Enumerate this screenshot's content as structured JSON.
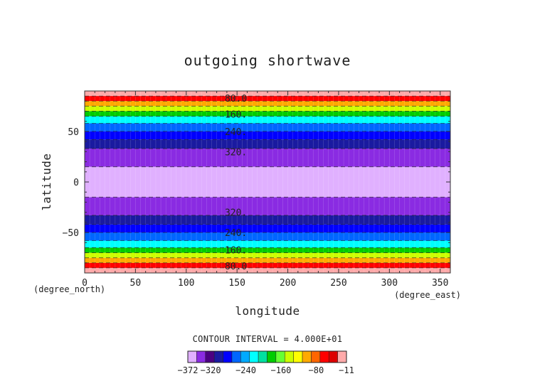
{
  "chart_data": {
    "type": "heatmap",
    "title": "outgoing shortwave",
    "xlabel": "longitude",
    "ylabel": "latitude",
    "x_unit": "(degree_east)",
    "y_unit": "(degree_north)",
    "xlim": [
      0,
      360
    ],
    "ylim": [
      -90,
      90
    ],
    "x_ticks": [
      0,
      50,
      100,
      150,
      200,
      250,
      300,
      350
    ],
    "y_ticks": [
      -50,
      0,
      50
    ],
    "y_tick_labels": [
      "−50",
      "0",
      "50"
    ],
    "field_description": "zonally uniform, symmetric about equator",
    "bands_north": [
      {
        "lat_min": 85,
        "lat_max": 90,
        "value": -11
      },
      {
        "lat_min": 80,
        "lat_max": 85,
        "value": -60
      },
      {
        "lat_min": 75,
        "lat_max": 80,
        "value": -100
      },
      {
        "lat_min": 70,
        "lat_max": 75,
        "value": -140
      },
      {
        "lat_min": 65,
        "lat_max": 70,
        "value": -180
      },
      {
        "lat_min": 58,
        "lat_max": 65,
        "value": -220
      },
      {
        "lat_min": 50,
        "lat_max": 58,
        "value": -260
      },
      {
        "lat_min": 42,
        "lat_max": 50,
        "value": -290
      },
      {
        "lat_min": 33,
        "lat_max": 42,
        "value": -310
      },
      {
        "lat_min": 15,
        "lat_max": 33,
        "value": -340
      },
      {
        "lat_min": 0,
        "lat_max": 15,
        "value": -372
      }
    ],
    "contour_labels": [
      {
        "text": "80.0",
        "lat": 83,
        "lon": 137
      },
      {
        "text": "160.",
        "lat": 67,
        "lon": 137
      },
      {
        "text": "240.",
        "lat": 50,
        "lon": 137
      },
      {
        "text": "320.",
        "lat": 30,
        "lon": 137
      },
      {
        "text": "320.",
        "lat": -30,
        "lon": 137
      },
      {
        "text": "240.",
        "lat": -50,
        "lon": 137
      },
      {
        "text": "160.",
        "lat": -67,
        "lon": 137
      },
      {
        "text": "80.0",
        "lat": -83,
        "lon": 137
      }
    ],
    "contour_interval_text": "CONTOUR INTERVAL = 4.000E+01",
    "colorbar": {
      "range": [
        -372,
        -11
      ],
      "colors": [
        "#e0b0ff",
        "#8a2be2",
        "#4b0082",
        "#1a1aa0",
        "#0000ff",
        "#0066ff",
        "#00aaff",
        "#00ffff",
        "#00e0a0",
        "#00cc00",
        "#66ff33",
        "#ccff00",
        "#ffff00",
        "#ffaa00",
        "#ff6600",
        "#ff0000",
        "#dd0000",
        "#ffaaaa"
      ],
      "tick_labels": [
        {
          "value": -372,
          "text": "−372"
        },
        {
          "value": -320,
          "text": "−320"
        },
        {
          "value": -240,
          "text": "−240"
        },
        {
          "value": -160,
          "text": "−160"
        },
        {
          "value": -80,
          "text": "−80"
        },
        {
          "value": -11,
          "text": "−11"
        }
      ]
    }
  }
}
